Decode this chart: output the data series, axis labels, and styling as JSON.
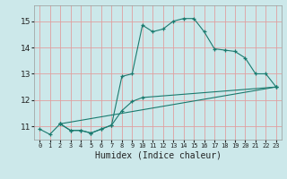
{
  "xlabel": "Humidex (Indice chaleur)",
  "bg_color": "#cce8ea",
  "grid_color": "#e0a0a0",
  "line_color": "#1a7a6e",
  "xlim": [
    -0.5,
    23.5
  ],
  "ylim": [
    10.5,
    15.6
  ],
  "yticks": [
    11,
    12,
    13,
    14,
    15
  ],
  "xticks": [
    0,
    1,
    2,
    3,
    4,
    5,
    6,
    7,
    8,
    9,
    10,
    11,
    12,
    13,
    14,
    15,
    16,
    17,
    18,
    19,
    20,
    21,
    22,
    23
  ],
  "line1_x": [
    0,
    1,
    2,
    3,
    4,
    5,
    6,
    7,
    8,
    9,
    10,
    11,
    12,
    13,
    14,
    15,
    16,
    17,
    18,
    19,
    20,
    21,
    22,
    23
  ],
  "line1_y": [
    10.9,
    10.7,
    11.1,
    10.85,
    10.85,
    10.75,
    10.9,
    11.05,
    12.9,
    13.0,
    14.85,
    14.6,
    14.7,
    15.0,
    15.1,
    15.1,
    14.6,
    13.95,
    13.9,
    13.85,
    13.6,
    13.0,
    13.0,
    12.5
  ],
  "line2_x": [
    2,
    3,
    4,
    5,
    6,
    7,
    8,
    9,
    10,
    23
  ],
  "line2_y": [
    11.1,
    10.85,
    10.85,
    10.75,
    10.9,
    11.05,
    11.6,
    11.95,
    12.1,
    12.5
  ],
  "line3_x": [
    2,
    23
  ],
  "line3_y": [
    11.1,
    12.5
  ]
}
